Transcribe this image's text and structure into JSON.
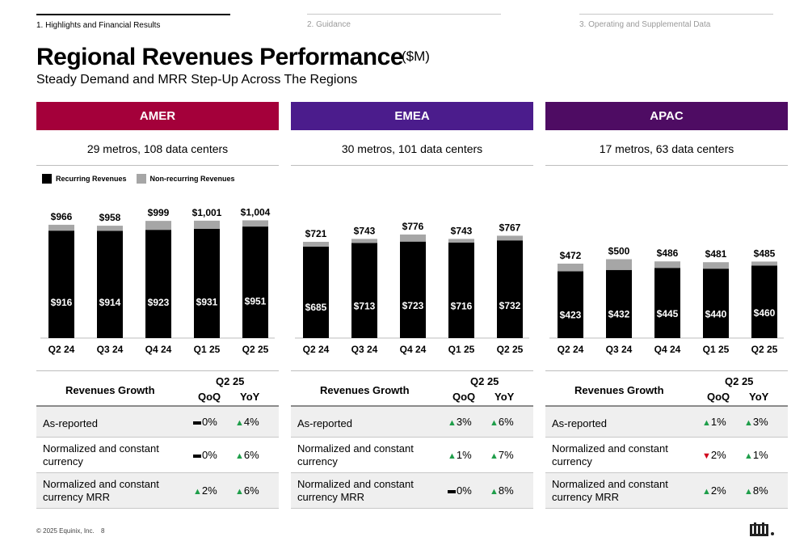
{
  "nav": [
    {
      "label": "1. Highlights and Financial Results",
      "active": true
    },
    {
      "label": "2. Guidance",
      "active": false
    },
    {
      "label": "3. Operating and Supplemental Data",
      "active": false
    }
  ],
  "title": "Regional Revenues Performance",
  "unit": "($M)",
  "subtitle": "Steady Demand and MRR Step-Up Across The Regions",
  "legend": {
    "recurring": "Recurring Revenues",
    "nonrecurring": "Non-recurring Revenues"
  },
  "colors": {
    "recurring": "#000000",
    "nonrecurring": "#a6a6a6",
    "amer": "#a4003a",
    "emea": "#4b1c8c",
    "apac": "#4e0c63"
  },
  "regions": [
    {
      "name": "AMER",
      "metros": "29 metros, 108 data centers",
      "color": "#a4003a"
    },
    {
      "name": "EMEA",
      "metros": "30 metros, 101 data centers",
      "color": "#4b1c8c"
    },
    {
      "name": "APAC",
      "metros": "17 metros, 63 data centers",
      "color": "#4e0c63"
    }
  ],
  "chart_data": [
    {
      "type": "bar",
      "stacked": true,
      "region": "AMER",
      "categories": [
        "Q2 24",
        "Q3 24",
        "Q4 24",
        "Q1 25",
        "Q2 25"
      ],
      "series": [
        {
          "name": "Recurring Revenues",
          "values": [
            916,
            914,
            923,
            931,
            951
          ],
          "labels": [
            "$916",
            "$914",
            "$923",
            "$931",
            "$951"
          ]
        },
        {
          "name": "Non-recurring Revenues",
          "values": [
            50,
            44,
            76,
            70,
            53
          ]
        }
      ],
      "totals": [
        966,
        958,
        999,
        1001,
        1004
      ],
      "total_labels": [
        "$966",
        "$958",
        "$999",
        "$1,001",
        "$1,004"
      ]
    },
    {
      "type": "bar",
      "stacked": true,
      "region": "EMEA",
      "categories": [
        "Q2 24",
        "Q3 24",
        "Q4 24",
        "Q1 25",
        "Q2 25"
      ],
      "series": [
        {
          "name": "Recurring Revenues",
          "values": [
            685,
            713,
            723,
            716,
            732
          ],
          "labels": [
            "$685",
            "$713",
            "$723",
            "$716",
            "$732"
          ]
        },
        {
          "name": "Non-recurring Revenues",
          "values": [
            36,
            30,
            53,
            27,
            35
          ]
        }
      ],
      "totals": [
        721,
        743,
        776,
        743,
        767
      ],
      "total_labels": [
        "$721",
        "$743",
        "$776",
        "$743",
        "$767"
      ]
    },
    {
      "type": "bar",
      "stacked": true,
      "region": "APAC",
      "categories": [
        "Q2 24",
        "Q3 24",
        "Q4 24",
        "Q1 25",
        "Q2 25"
      ],
      "series": [
        {
          "name": "Recurring Revenues",
          "values": [
            423,
            432,
            445,
            440,
            460
          ],
          "labels": [
            "$423",
            "$432",
            "$445",
            "$440",
            "$460"
          ]
        },
        {
          "name": "Non-recurring Revenues",
          "values": [
            49,
            68,
            41,
            41,
            25
          ]
        }
      ],
      "totals": [
        472,
        500,
        486,
        481,
        485
      ],
      "total_labels": [
        "$472",
        "$500",
        "$486",
        "$481",
        "$485"
      ]
    }
  ],
  "growth_tables": [
    {
      "title": "Revenues Growth",
      "period": "Q2 25",
      "qoq": "QoQ",
      "yoy": "YoY",
      "rows": [
        {
          "label": "As-reported",
          "qoq": "0%",
          "qoq_dir": "flat",
          "yoy": "4%",
          "yoy_dir": "up"
        },
        {
          "label": "Normalized and constant currency",
          "qoq": "0%",
          "qoq_dir": "flat",
          "yoy": "6%",
          "yoy_dir": "up"
        },
        {
          "label": "Normalized and constant currency MRR",
          "qoq": "2%",
          "qoq_dir": "up",
          "yoy": "6%",
          "yoy_dir": "up"
        }
      ]
    },
    {
      "title": "Revenues Growth",
      "period": "Q2 25",
      "qoq": "QoQ",
      "yoy": "YoY",
      "rows": [
        {
          "label": "As-reported",
          "qoq": "3%",
          "qoq_dir": "up",
          "yoy": "6%",
          "yoy_dir": "up"
        },
        {
          "label": "Normalized and constant currency",
          "qoq": "1%",
          "qoq_dir": "up",
          "yoy": "7%",
          "yoy_dir": "up"
        },
        {
          "label": "Normalized and constant currency MRR",
          "qoq": "0%",
          "qoq_dir": "flat",
          "yoy": "8%",
          "yoy_dir": "up"
        }
      ]
    },
    {
      "title": "Revenues Growth",
      "period": "Q2 25",
      "qoq": "QoQ",
      "yoy": "YoY",
      "rows": [
        {
          "label": "As-reported",
          "qoq": "1%",
          "qoq_dir": "up",
          "yoy": "3%",
          "yoy_dir": "up"
        },
        {
          "label": "Normalized and constant currency",
          "qoq": "2%",
          "qoq_dir": "down",
          "yoy": "1%",
          "yoy_dir": "up"
        },
        {
          "label": "Normalized and constant currency MRR",
          "qoq": "2%",
          "qoq_dir": "up",
          "yoy": "8%",
          "yoy_dir": "up"
        }
      ]
    }
  ],
  "footer": "© 2025 Equinix, Inc.",
  "page_number": "8",
  "logo_icon": "equinix-logo-icon"
}
